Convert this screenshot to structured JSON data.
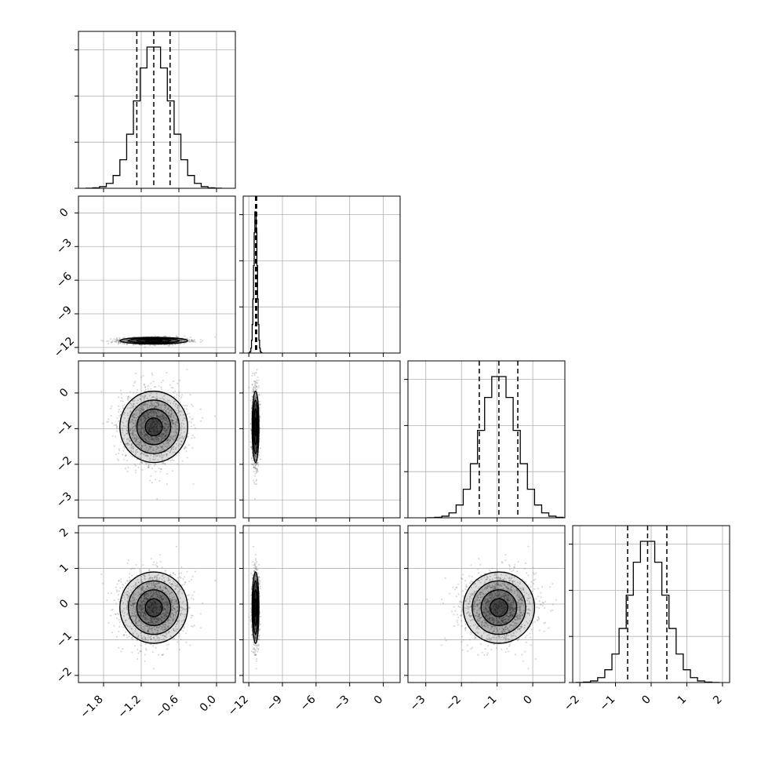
{
  "chart_data": {
    "type": "corner",
    "title": "",
    "n_params": 4,
    "parameters": [
      {
        "label": "",
        "range": [
          -2.2,
          0.3
        ],
        "ticks": [
          -1.8,
          -1.2,
          -0.6,
          0.0
        ],
        "tick_labels": [
          "−1.8",
          "−1.2",
          "−0.6",
          "0.0"
        ],
        "mean": -1.0,
        "sd": 0.27,
        "quantiles": [
          -1.27,
          -1.0,
          -0.74
        ]
      },
      {
        "label": "",
        "range": [
          -12.5,
          1.5
        ],
        "ticks": [
          -12,
          -9,
          -6,
          -3,
          0
        ],
        "tick_labels": [
          "−12",
          "−9",
          "−6",
          "−3",
          "0"
        ],
        "mean": -11.4,
        "sd": 0.15,
        "quantiles": [
          -11.4,
          -11.35,
          -11.3
        ]
      },
      {
        "label": "",
        "range": [
          -3.5,
          0.9
        ],
        "ticks": [
          -3,
          -2,
          -1,
          0
        ],
        "tick_labels": [
          "−3",
          "−2",
          "−1",
          "0"
        ],
        "mean": -0.95,
        "sd": 0.5,
        "quantiles": [
          -1.5,
          -0.95,
          -0.42
        ]
      },
      {
        "label": "",
        "range": [
          -2.2,
          2.2
        ],
        "ticks": [
          -2,
          -1,
          0,
          1,
          2
        ],
        "tick_labels": [
          "−2",
          "−1",
          "0",
          "1",
          "2"
        ],
        "mean": -0.1,
        "sd": 0.5,
        "quantiles": [
          -0.66,
          -0.1,
          0.44
        ]
      }
    ],
    "quantile_levels": [
      0.16,
      0.5,
      0.84
    ],
    "histogram_bins": 20,
    "grid": true,
    "legend": "none"
  }
}
